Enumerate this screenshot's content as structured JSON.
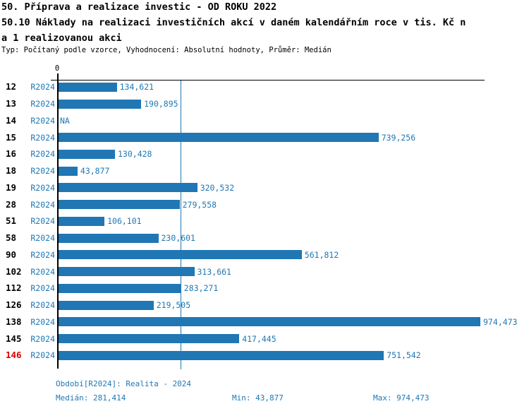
{
  "header": {
    "title_line1": "50. Příprava a realizace investic - OD ROKU 2022",
    "title_line2": "50.10 Náklady na realizaci investičních akcí v daném kalendářním roce v tis. Kč n",
    "title_line3": "a 1 realizovanou akci",
    "subtitle": "Typ: Počítaný podle vzorce, Vyhodnocení: Absolutní hodnoty, Průměr: Medián"
  },
  "chart_data": {
    "type": "bar",
    "orientation": "horizontal",
    "x_axis": {
      "min": 0,
      "tick_labels": [
        "0"
      ],
      "zero_label": "0"
    },
    "x_max_scale": 974473,
    "median_value": 281414,
    "median_line": true,
    "grid": false,
    "legend": false,
    "rows": [
      {
        "id": "12",
        "period": "R2024",
        "value": 134621,
        "label": "134,621",
        "highlight": false
      },
      {
        "id": "13",
        "period": "R2024",
        "value": 190895,
        "label": "190,895",
        "highlight": false
      },
      {
        "id": "14",
        "period": "R2024",
        "value": null,
        "label": "NA",
        "highlight": false
      },
      {
        "id": "15",
        "period": "R2024",
        "value": 739256,
        "label": "739,256",
        "highlight": false
      },
      {
        "id": "16",
        "period": "R2024",
        "value": 130428,
        "label": "130,428",
        "highlight": false
      },
      {
        "id": "18",
        "period": "R2024",
        "value": 43877,
        "label": "43,877",
        "highlight": false
      },
      {
        "id": "19",
        "period": "R2024",
        "value": 320532,
        "label": "320,532",
        "highlight": false
      },
      {
        "id": "28",
        "period": "R2024",
        "value": 279558,
        "label": "279,558",
        "highlight": false
      },
      {
        "id": "51",
        "period": "R2024",
        "value": 106101,
        "label": "106,101",
        "highlight": false
      },
      {
        "id": "58",
        "period": "R2024",
        "value": 230601,
        "label": "230,601",
        "highlight": false
      },
      {
        "id": "90",
        "period": "R2024",
        "value": 561812,
        "label": "561,812",
        "highlight": false
      },
      {
        "id": "102",
        "period": "R2024",
        "value": 313661,
        "label": "313,661",
        "highlight": false
      },
      {
        "id": "112",
        "period": "R2024",
        "value": 283271,
        "label": "283,271",
        "highlight": false
      },
      {
        "id": "126",
        "period": "R2024",
        "value": 219505,
        "label": "219,505",
        "highlight": false
      },
      {
        "id": "138",
        "period": "R2024",
        "value": 974473,
        "label": "974,473",
        "highlight": false
      },
      {
        "id": "145",
        "period": "R2024",
        "value": 417445,
        "label": "417,445",
        "highlight": false
      },
      {
        "id": "146",
        "period": "R2024",
        "value": 751542,
        "label": "751,542",
        "highlight": true
      }
    ]
  },
  "footer": {
    "period_info": "Období[R2024]: Realita - 2024",
    "median": "Medián: 281,414",
    "min": "Min: 43,877",
    "max": "Max: 974,473"
  },
  "colors": {
    "bar": "#2077b4",
    "text_blue": "#1f77b4",
    "highlight_red": "#dd0000",
    "axis_black": "#000000"
  }
}
